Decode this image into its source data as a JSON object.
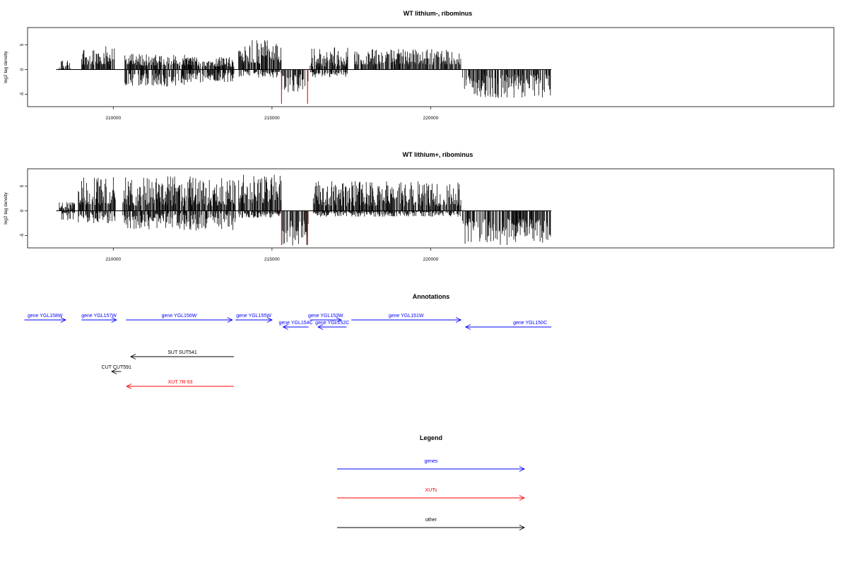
{
  "colors": {
    "genes": "#0000ff",
    "XUTs": "#ff0000",
    "other": "#000000",
    "axis": "#000000",
    "highlight": "#ff0000"
  },
  "chart_data": [
    {
      "type": "bar",
      "title": "WT lithium-, ribominus",
      "ylabel": "log2 tag density",
      "xlabel": "",
      "xlim": [
        207300,
        232700
      ],
      "ylim": [
        -7.5,
        8.5
      ],
      "xticks": [
        210000,
        215000,
        220000
      ],
      "xtick_labels": [
        "210000",
        "215000",
        "220000"
      ],
      "yticks": [
        5,
        0,
        -5
      ],
      "ytick_labels": [
        "5",
        "0",
        "-5"
      ],
      "baseline_range": [
        208200,
        223800
      ],
      "highlight_positions": [
        215300,
        216120
      ],
      "highlight_range": [
        -7.5,
        0
      ],
      "grid": false,
      "density_segments": [
        {
          "start": 208300,
          "end": 208650,
          "positive": [
            0,
            2.2
          ],
          "negative": [
            0,
            0
          ]
        },
        {
          "start": 209000,
          "end": 210050,
          "positive": [
            1.0,
            4.8
          ],
          "negative": [
            0,
            0
          ]
        },
        {
          "start": 210350,
          "end": 212400,
          "positive": [
            0.8,
            3.2
          ],
          "negative": [
            0.8,
            3.5
          ]
        },
        {
          "start": 212400,
          "end": 213800,
          "positive": [
            0.6,
            2.6
          ],
          "negative": [
            0.6,
            2.6
          ]
        },
        {
          "start": 213950,
          "end": 215300,
          "positive": [
            1.2,
            6.0
          ],
          "negative": [
            0.4,
            1.6
          ]
        },
        {
          "start": 215300,
          "end": 216150,
          "positive": [
            0,
            0
          ],
          "negative": [
            1.0,
            4.6
          ]
        },
        {
          "start": 216200,
          "end": 217400,
          "positive": [
            0.6,
            4.5
          ],
          "negative": [
            0.5,
            1.6
          ]
        },
        {
          "start": 217600,
          "end": 220950,
          "positive": [
            1.0,
            4.2
          ],
          "negative": [
            0,
            0
          ]
        },
        {
          "start": 221000,
          "end": 223800,
          "positive": [
            0,
            0
          ],
          "negative": [
            1.0,
            5.8
          ]
        }
      ]
    },
    {
      "type": "bar",
      "title": "WT lithium+, ribominus",
      "ylabel": "log2 tag density",
      "xlabel": "",
      "xlim": [
        207300,
        232700
      ],
      "ylim": [
        -7.5,
        8.5
      ],
      "xticks": [
        210000,
        215000,
        220000
      ],
      "xtick_labels": [
        "210000",
        "215000",
        "220000"
      ],
      "yticks": [
        5,
        0,
        -5
      ],
      "ytick_labels": [
        "5",
        "0",
        "-5"
      ],
      "baseline_range": [
        208200,
        223800
      ],
      "highlight_positions": [
        215300,
        216120
      ],
      "highlight_range": [
        -7.5,
        0
      ],
      "grid": false,
      "density_segments": [
        {
          "start": 208300,
          "end": 208800,
          "positive": [
            0.4,
            1.8
          ],
          "negative": [
            0.2,
            2.0
          ]
        },
        {
          "start": 208900,
          "end": 210100,
          "positive": [
            1.2,
            7.0
          ],
          "negative": [
            0.3,
            2.5
          ]
        },
        {
          "start": 210300,
          "end": 213850,
          "positive": [
            1.0,
            7.0
          ],
          "negative": [
            0.5,
            4.0
          ]
        },
        {
          "start": 213950,
          "end": 215300,
          "positive": [
            1.5,
            7.6
          ],
          "negative": [
            0.3,
            1.5
          ]
        },
        {
          "start": 215300,
          "end": 216150,
          "positive": [
            0,
            0
          ],
          "negative": [
            2.0,
            7.0
          ]
        },
        {
          "start": 216300,
          "end": 220950,
          "positive": [
            1.0,
            6.0
          ],
          "negative": [
            0.2,
            1.2
          ]
        },
        {
          "start": 221000,
          "end": 223800,
          "positive": [
            0,
            0
          ],
          "negative": [
            1.5,
            7.0
          ]
        }
      ]
    }
  ],
  "annotations": {
    "title": "Annotations",
    "items": [
      {
        "label": "gene YGL158W",
        "start": 207200,
        "end": 208500,
        "direction": "+",
        "kind": "genes",
        "row": 0
      },
      {
        "label": "gene YGL157W",
        "start": 209000,
        "end": 210100,
        "direction": "+",
        "kind": "genes",
        "row": 0
      },
      {
        "label": "gene YGL156W",
        "start": 210400,
        "end": 213750,
        "direction": "+",
        "kind": "genes",
        "row": 0
      },
      {
        "label": "gene YGL155W",
        "start": 213850,
        "end": 215000,
        "direction": "+",
        "kind": "genes",
        "row": 0
      },
      {
        "label": "gene YGL154C",
        "start": 215350,
        "end": 216150,
        "direction": "-",
        "kind": "genes",
        "row": 1
      },
      {
        "label": "gene YGL153W",
        "start": 216200,
        "end": 217180,
        "direction": "+",
        "kind": "genes",
        "row": 0
      },
      {
        "label": "gene YGL152C",
        "start": 216450,
        "end": 217350,
        "direction": "-",
        "kind": "genes",
        "row": 1
      },
      {
        "label": "gene YGL151W",
        "start": 217500,
        "end": 220950,
        "direction": "+",
        "kind": "genes",
        "row": 0
      },
      {
        "label": "gene YGL150C",
        "start": 221100,
        "end": 223800,
        "direction": "-",
        "kind": "genes",
        "row": 1
      },
      {
        "label": "SUT SUT541",
        "start": 210550,
        "end": 213800,
        "direction": "-",
        "kind": "other",
        "row": 2
      },
      {
        "label": "CUT CUT591",
        "start": 209950,
        "end": 210250,
        "direction": "-",
        "kind": "other",
        "row": 3
      },
      {
        "label": "XUT 7R-93",
        "start": 210420,
        "end": 213800,
        "direction": "-",
        "kind": "XUTs",
        "row": 4
      }
    ]
  },
  "legend": {
    "title": "Legend",
    "items": [
      {
        "label": "genes",
        "kind": "genes"
      },
      {
        "label": "XUTs",
        "kind": "XUTs"
      },
      {
        "label": "other",
        "kind": "other"
      }
    ]
  }
}
